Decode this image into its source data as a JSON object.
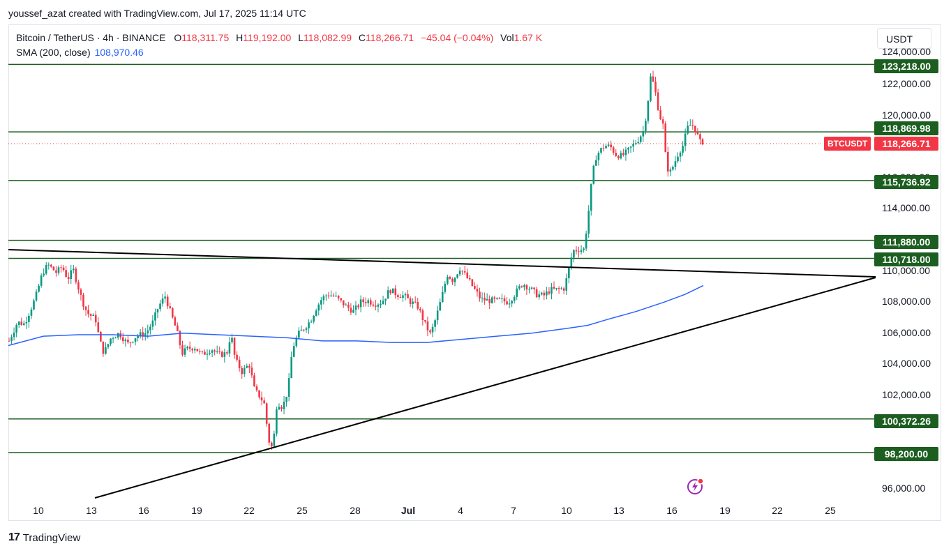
{
  "header": {
    "credit": "youssef_azat created with TradingView.com, Jul 17, 2025 11:14 UTC"
  },
  "legend": {
    "symbol": "Bitcoin / TetherUS · 4h · BINANCE",
    "open_key": "O",
    "open": "118,311.75",
    "high_key": "H",
    "high": "119,192.00",
    "low_key": "L",
    "low": "118,082.99",
    "close_key": "C",
    "close": "118,266.71",
    "change": "−45.04 (−0.04%)",
    "vol_key": "Vol",
    "vol": "1.67 K",
    "sma_label": "SMA (200, close)",
    "sma_value": "108,970.46"
  },
  "toolbar": {
    "currency": "USDT"
  },
  "price_axis": {
    "ticks": [
      "124,000.00",
      "122,000.00",
      "120,000.00",
      "116,000.00",
      "114,000.00",
      "110,000.00",
      "108,000.00",
      "106,000.00",
      "104,000.00",
      "102,000.00",
      "96,000.00"
    ]
  },
  "levels": [
    "123,218.00",
    "118,869.98",
    "115,736.92",
    "111,880.00",
    "110,718.00",
    "100,372.26",
    "98,200.00"
  ],
  "current_price": {
    "symbol": "BTCUSDT",
    "value": "118,266.71"
  },
  "time_axis": {
    "ticks": [
      "10",
      "13",
      "16",
      "19",
      "22",
      "25",
      "28",
      "Jul",
      "4",
      "7",
      "10",
      "13",
      "16",
      "19",
      "22",
      "25"
    ]
  },
  "footer": {
    "brand": "TradingView",
    "logo": "17"
  },
  "colors": {
    "up": "#089981",
    "down": "#f23645",
    "level": "#1b5e20",
    "sma": "#2962ff",
    "trendline": "#000000"
  },
  "icons": {
    "alert": "lightning-alert-icon",
    "logo": "tradingview-logo-icon"
  },
  "chart_data": {
    "type": "candlestick",
    "symbol": "BTCUSDT",
    "timeframe": "4h",
    "ylim": [
      94800,
      124200
    ],
    "horizontal_levels": [
      123218.0,
      118869.98,
      115736.92,
      111880.0,
      110718.0,
      100372.26,
      98200.0
    ],
    "last_price": 118266.71,
    "price_path": [
      [
        0,
        105400
      ],
      [
        12,
        106600
      ],
      [
        22,
        106500
      ],
      [
        38,
        108200
      ],
      [
        48,
        109800
      ],
      [
        56,
        110300
      ],
      [
        68,
        109800
      ],
      [
        76,
        110200
      ],
      [
        84,
        109400
      ],
      [
        92,
        110000
      ],
      [
        104,
        108100
      ],
      [
        112,
        107200
      ],
      [
        124,
        106800
      ],
      [
        130,
        105400
      ],
      [
        136,
        104600
      ],
      [
        146,
        105600
      ],
      [
        158,
        105900
      ],
      [
        170,
        105200
      ],
      [
        182,
        105700
      ],
      [
        196,
        105900
      ],
      [
        206,
        106600
      ],
      [
        214,
        107600
      ],
      [
        224,
        108300
      ],
      [
        230,
        107400
      ],
      [
        240,
        106100
      ],
      [
        248,
        104600
      ],
      [
        256,
        104900
      ],
      [
        266,
        105000
      ],
      [
        276,
        104500
      ],
      [
        290,
        104900
      ],
      [
        300,
        104500
      ],
      [
        312,
        104600
      ],
      [
        318,
        105900
      ],
      [
        324,
        104200
      ],
      [
        334,
        103400
      ],
      [
        344,
        103900
      ],
      [
        352,
        102200
      ],
      [
        360,
        101800
      ],
      [
        366,
        101300
      ],
      [
        372,
        99000
      ],
      [
        378,
        98400
      ],
      [
        384,
        101500
      ],
      [
        392,
        101100
      ],
      [
        400,
        102300
      ],
      [
        406,
        104900
      ],
      [
        414,
        105800
      ],
      [
        424,
        106300
      ],
      [
        432,
        106700
      ],
      [
        440,
        107500
      ],
      [
        448,
        108100
      ],
      [
        456,
        108400
      ],
      [
        466,
        108300
      ],
      [
        476,
        107900
      ],
      [
        484,
        107600
      ],
      [
        494,
        107300
      ],
      [
        504,
        107900
      ],
      [
        514,
        108000
      ],
      [
        524,
        107800
      ],
      [
        534,
        107900
      ],
      [
        546,
        108700
      ],
      [
        556,
        108400
      ],
      [
        566,
        108300
      ],
      [
        576,
        107900
      ],
      [
        586,
        107600
      ],
      [
        596,
        106500
      ],
      [
        604,
        105800
      ],
      [
        612,
        106900
      ],
      [
        620,
        108200
      ],
      [
        628,
        109700
      ],
      [
        636,
        109300
      ],
      [
        646,
        110100
      ],
      [
        656,
        109500
      ],
      [
        666,
        108800
      ],
      [
        676,
        108100
      ],
      [
        686,
        108000
      ],
      [
        696,
        108000
      ],
      [
        706,
        108000
      ],
      [
        716,
        107900
      ],
      [
        726,
        108500
      ],
      [
        736,
        109100
      ],
      [
        746,
        108800
      ],
      [
        756,
        108400
      ],
      [
        766,
        108300
      ],
      [
        776,
        108700
      ],
      [
        786,
        108700
      ],
      [
        796,
        108800
      ],
      [
        802,
        110000
      ],
      [
        808,
        111200
      ],
      [
        816,
        111300
      ],
      [
        824,
        111300
      ],
      [
        830,
        113500
      ],
      [
        836,
        116100
      ],
      [
        842,
        117400
      ],
      [
        848,
        117700
      ],
      [
        854,
        118000
      ],
      [
        862,
        117900
      ],
      [
        870,
        117400
      ],
      [
        878,
        117300
      ],
      [
        886,
        117600
      ],
      [
        894,
        118000
      ],
      [
        902,
        118400
      ],
      [
        910,
        119000
      ],
      [
        916,
        121000
      ],
      [
        920,
        122600
      ],
      [
        926,
        121500
      ],
      [
        932,
        120000
      ],
      [
        938,
        119200
      ],
      [
        942,
        116600
      ],
      [
        948,
        116300
      ],
      [
        954,
        116900
      ],
      [
        960,
        117600
      ],
      [
        966,
        118000
      ],
      [
        972,
        119100
      ],
      [
        978,
        119400
      ],
      [
        984,
        119000
      ],
      [
        990,
        118200
      ],
      [
        996,
        118267
      ]
    ],
    "sma": [
      [
        0,
        105100
      ],
      [
        50,
        105700
      ],
      [
        100,
        105800
      ],
      [
        150,
        105800
      ],
      [
        200,
        105700
      ],
      [
        250,
        105900
      ],
      [
        300,
        105800
      ],
      [
        350,
        105700
      ],
      [
        400,
        105600
      ],
      [
        450,
        105400
      ],
      [
        500,
        105400
      ],
      [
        550,
        105300
      ],
      [
        600,
        105300
      ],
      [
        650,
        105500
      ],
      [
        700,
        105700
      ],
      [
        750,
        105900
      ],
      [
        800,
        106200
      ],
      [
        830,
        106400
      ],
      [
        860,
        106800
      ],
      [
        900,
        107300
      ],
      [
        940,
        107900
      ],
      [
        970,
        108400
      ],
      [
        996,
        108970
      ]
    ]
  }
}
